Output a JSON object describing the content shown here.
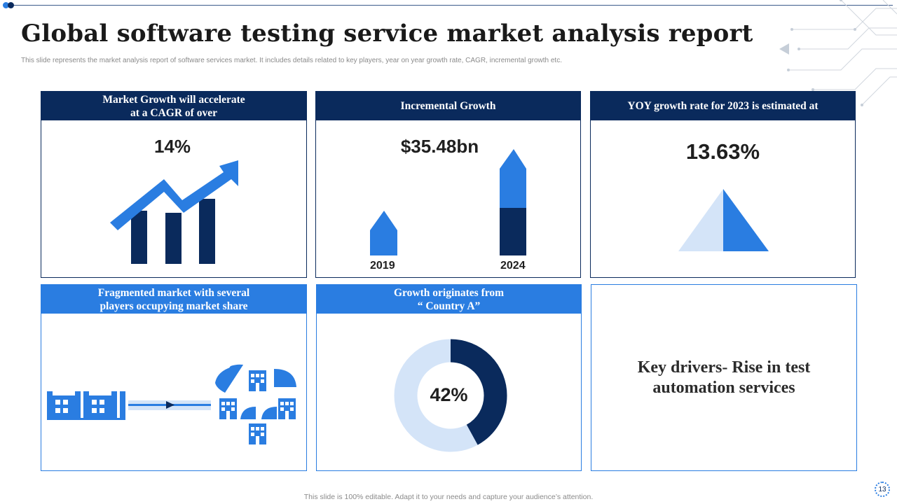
{
  "header": {
    "title": "Global software testing service market analysis report",
    "subtitle": "This slide represents the market analysis report of software services market. It includes details related to key players, year on year growth rate, CAGR, incremental growth etc."
  },
  "cards": {
    "cagr": {
      "title_line1": "Market Growth will accelerate",
      "title_line2": "at a CAGR of over",
      "value": "14%"
    },
    "incremental": {
      "title": "Incremental Growth",
      "value": "$35.48bn",
      "year_a": "2019",
      "year_b": "2024"
    },
    "yoy": {
      "title": "YOY growth rate for 2023 is estimated at",
      "value": "13.63%"
    },
    "fragmented": {
      "title_line1": "Fragmented market with several",
      "title_line2": "players occupying market share"
    },
    "origin": {
      "title_line1": "Growth originates from",
      "title_line2": "“ Country A”",
      "value": "42%",
      "percent": 42
    },
    "drivers": {
      "line1": "Key drivers- Rise in test",
      "line2": "automation services"
    }
  },
  "footer": {
    "note": "This slide is 100% editable. Adapt it to your needs and capture your audience’s attention.",
    "page": "13"
  },
  "colors": {
    "navy": "#0a2a5c",
    "blue": "#2a7de1",
    "light": "#d4e4f8"
  }
}
